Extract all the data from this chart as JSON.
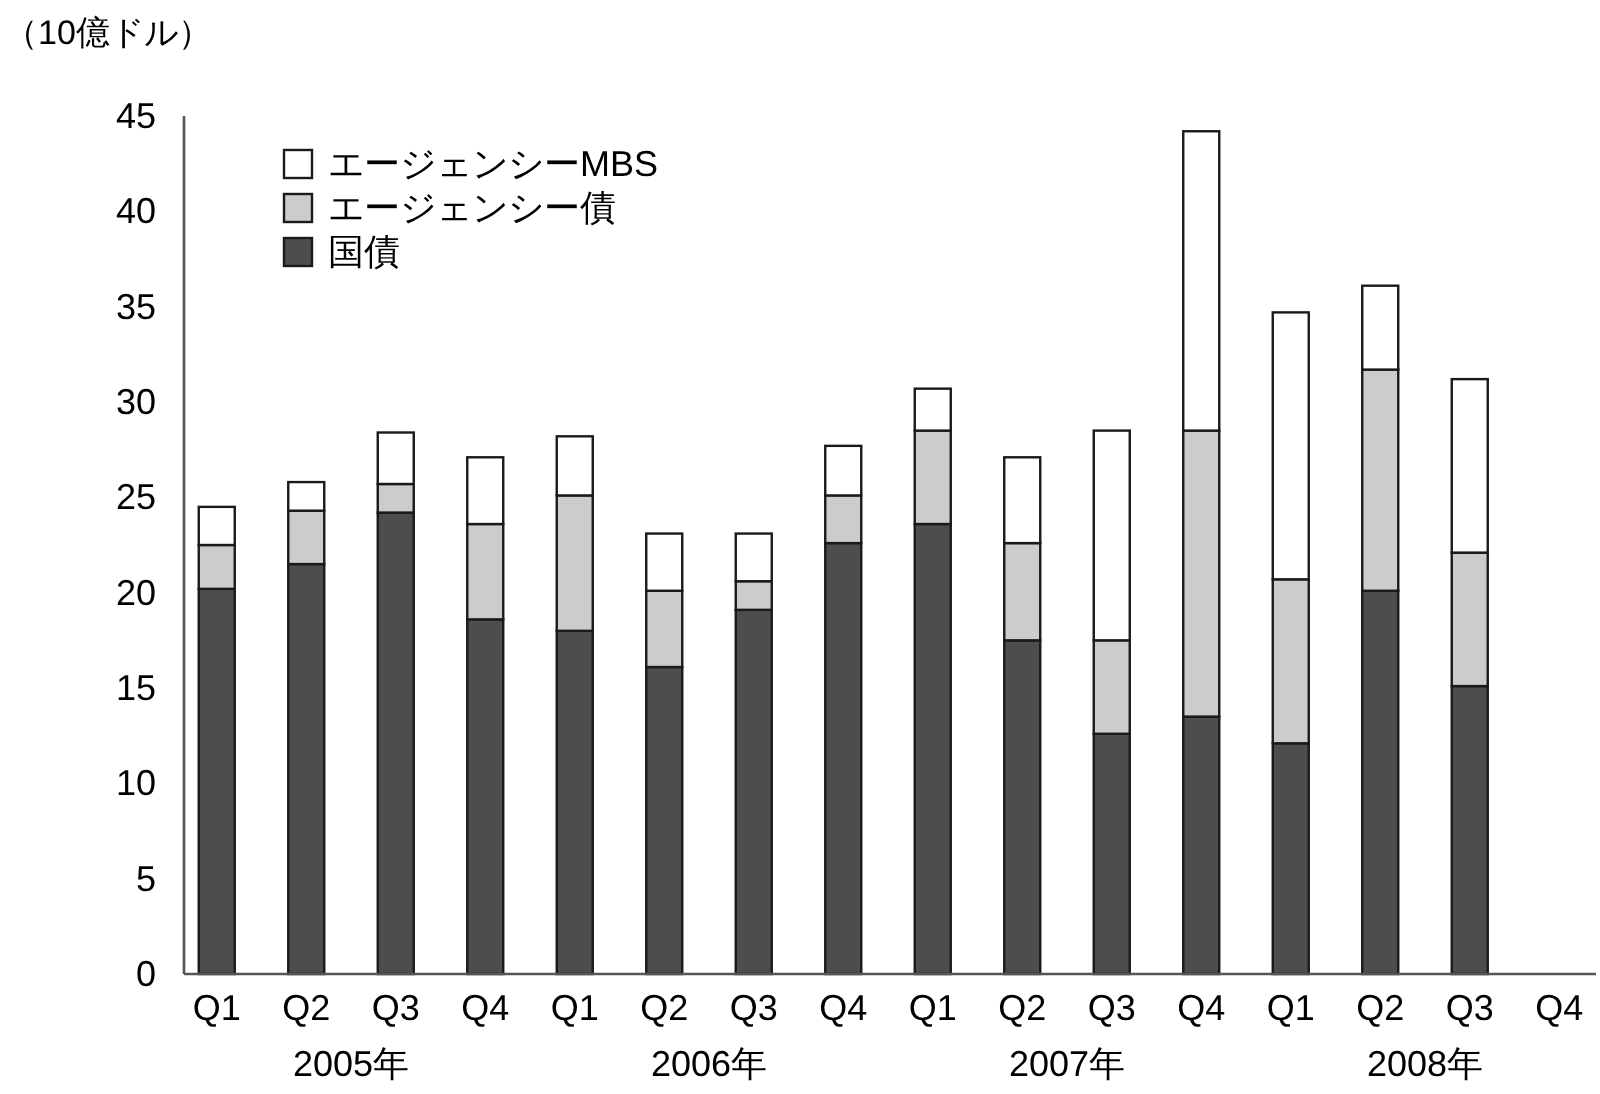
{
  "chart_data": {
    "type": "bar",
    "stacked": true,
    "ylabel": "（10億ドル）",
    "categories": [
      "Q1",
      "Q2",
      "Q3",
      "Q4",
      "Q1",
      "Q2",
      "Q3",
      "Q4",
      "Q1",
      "Q2",
      "Q3",
      "Q4",
      "Q1",
      "Q2",
      "Q3",
      "Q4"
    ],
    "series": [
      {
        "name": "国債",
        "color": "#4d4d4d",
        "values": [
          20.2,
          21.5,
          24.2,
          18.6,
          18.0,
          16.1,
          19.1,
          22.6,
          23.6,
          17.5,
          12.6,
          13.5,
          12.1,
          20.1,
          15.1,
          null
        ]
      },
      {
        "name": "エージェンシー債",
        "color": "#cccccc",
        "values": [
          2.3,
          2.8,
          1.5,
          5.0,
          7.1,
          4.0,
          1.5,
          2.5,
          4.9,
          5.1,
          4.9,
          15.0,
          8.6,
          11.6,
          7.0,
          null
        ]
      },
      {
        "name": "エージェンシーMBS",
        "color": "#ffffff",
        "values": [
          2.0,
          1.5,
          2.7,
          3.5,
          3.1,
          3.0,
          2.5,
          2.6,
          2.2,
          4.5,
          11.0,
          15.7,
          14.0,
          4.4,
          9.1,
          null
        ]
      }
    ],
    "annotations": [
      "2005年",
      "2006年",
      "2007年",
      "2008年"
    ],
    "ylim": [
      0,
      45
    ],
    "yticks": [
      0,
      5,
      10,
      15,
      20,
      25,
      30,
      35,
      40,
      45
    ],
    "legend": "top left",
    "grid": false
  }
}
